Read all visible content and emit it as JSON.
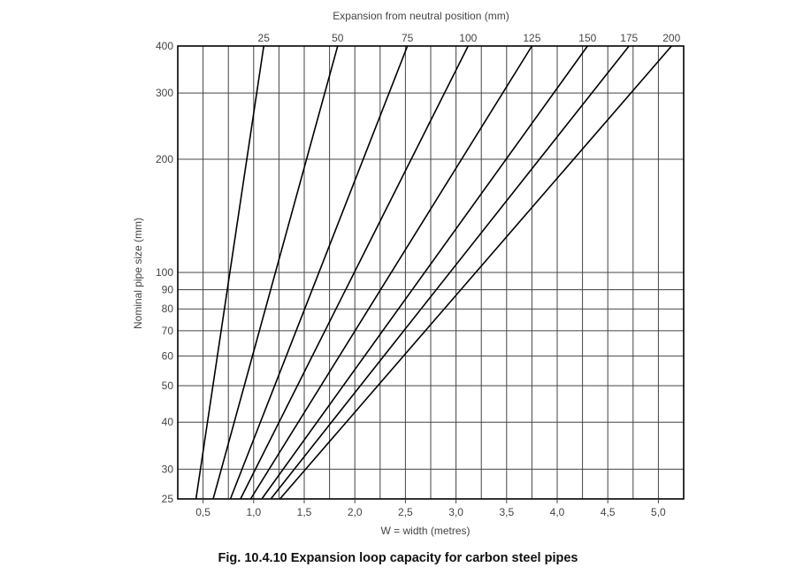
{
  "figure": {
    "caption": "Fig. 10.4.10 Expansion loop capacity for carbon steel pipes"
  },
  "colors": {
    "grid": "#444444",
    "lines": "#000000",
    "text": "#444444"
  },
  "chart_data": {
    "type": "line",
    "title": "Fig. 10.4.10 Expansion loop capacity for carbon steel pipes",
    "xlabel": "W = width (metres)",
    "ylabel": "Nominal pipe size (mm)",
    "top_axis_label": "Expansion from neutral position (mm)",
    "y_scale": "log",
    "xlim": [
      0.25,
      5.25
    ],
    "ylim": [
      25,
      400
    ],
    "grid": true,
    "x_ticks": [
      0.5,
      1.0,
      1.5,
      2.0,
      2.5,
      3.0,
      3.5,
      4.0,
      4.5,
      5.0
    ],
    "x_tick_labels": [
      "0,5",
      "1,0",
      "1,5",
      "2,0",
      "2,5",
      "3,0",
      "3,5",
      "4,0",
      "4,5",
      "5,0"
    ],
    "x_minor_grid": [
      0.75,
      1.25,
      1.75,
      2.25,
      2.75,
      3.25,
      3.75,
      4.25,
      4.75
    ],
    "y_ticks": [
      25,
      30,
      40,
      50,
      60,
      70,
      80,
      90,
      100,
      200,
      300,
      400
    ],
    "y_tick_labels": [
      "25",
      "30",
      "40",
      "50",
      "60",
      "70",
      "80",
      "90",
      "100",
      "200",
      "300",
      "400"
    ],
    "series": [
      {
        "name": "25",
        "points": [
          [
            0.43,
            25
          ],
          [
            1.1,
            400
          ]
        ]
      },
      {
        "name": "50",
        "points": [
          [
            0.6,
            25
          ],
          [
            1.83,
            400
          ]
        ]
      },
      {
        "name": "75",
        "points": [
          [
            0.77,
            25
          ],
          [
            2.52,
            400
          ]
        ]
      },
      {
        "name": "100",
        "points": [
          [
            0.87,
            25
          ],
          [
            3.12,
            400
          ]
        ]
      },
      {
        "name": "125",
        "points": [
          [
            0.97,
            25
          ],
          [
            3.75,
            400
          ]
        ]
      },
      {
        "name": "150",
        "points": [
          [
            1.08,
            25
          ],
          [
            4.3,
            400
          ]
        ]
      },
      {
        "name": "175",
        "points": [
          [
            1.17,
            25
          ],
          [
            4.71,
            400
          ]
        ]
      },
      {
        "name": "200",
        "points": [
          [
            1.26,
            25
          ],
          [
            5.13,
            400
          ]
        ]
      }
    ]
  }
}
